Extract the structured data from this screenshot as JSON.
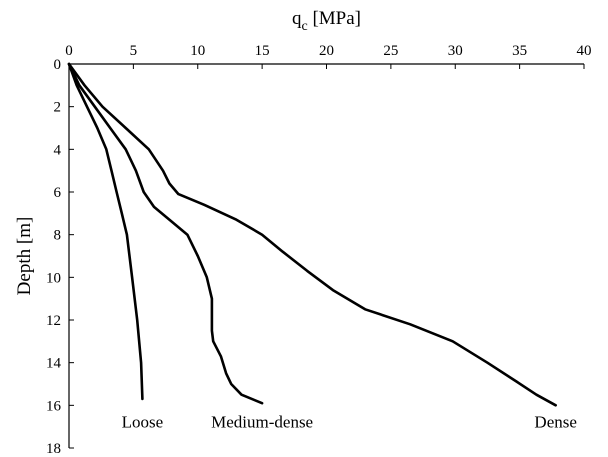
{
  "chart_data": {
    "type": "line",
    "orientation": "depth-profile",
    "x_axis": {
      "label_main": "q",
      "label_sub": "c",
      "label_unit": " [MPa]",
      "position": "top",
      "lim": [
        0,
        40
      ],
      "ticks": [
        0,
        5,
        10,
        15,
        20,
        25,
        30,
        35,
        40
      ]
    },
    "y_axis": {
      "label": "Depth [m]",
      "inverted": true,
      "lim": [
        0,
        18
      ],
      "ticks": [
        0,
        2,
        4,
        6,
        8,
        10,
        12,
        14,
        16,
        18
      ]
    },
    "grid": false,
    "legend": "none",
    "series": [
      {
        "name": "Loose",
        "x": [
          0,
          0.6,
          1.4,
          2.2,
          2.9,
          3.3,
          3.7,
          4.1,
          4.5,
          4.9,
          5.3,
          5.6,
          5.7
        ],
        "y": [
          0,
          1,
          2,
          3,
          4,
          5,
          6,
          7,
          8,
          10,
          12,
          14,
          15.7
        ]
      },
      {
        "name": "Medium-dense",
        "x": [
          0,
          0.8,
          2.0,
          3.2,
          4.4,
          5.2,
          5.8,
          6.6,
          8.0,
          9.2,
          10.0,
          10.7,
          11.1,
          11.1,
          11.2,
          11.8,
          12.2,
          12.6,
          13.4,
          15.0
        ],
        "y": [
          0,
          1,
          2,
          3,
          4,
          5,
          6,
          6.7,
          7.4,
          8.0,
          9.0,
          10.0,
          11.0,
          12.5,
          13.0,
          13.7,
          14.5,
          15.0,
          15.5,
          15.9
        ]
      },
      {
        "name": "Dense",
        "x": [
          0,
          1.2,
          2.6,
          4.4,
          6.2,
          7.3,
          7.8,
          8.5,
          10.5,
          13.0,
          15.0,
          16.6,
          18.5,
          20.5,
          23.0,
          26.5,
          29.8,
          32.5,
          34.8,
          36.3,
          37.8
        ],
        "y": [
          0,
          1,
          2,
          3,
          4,
          5,
          5.6,
          6.1,
          6.6,
          7.3,
          8.0,
          8.8,
          9.7,
          10.6,
          11.5,
          12.2,
          13.0,
          14.0,
          14.9,
          15.5,
          16.0
        ]
      }
    ]
  }
}
